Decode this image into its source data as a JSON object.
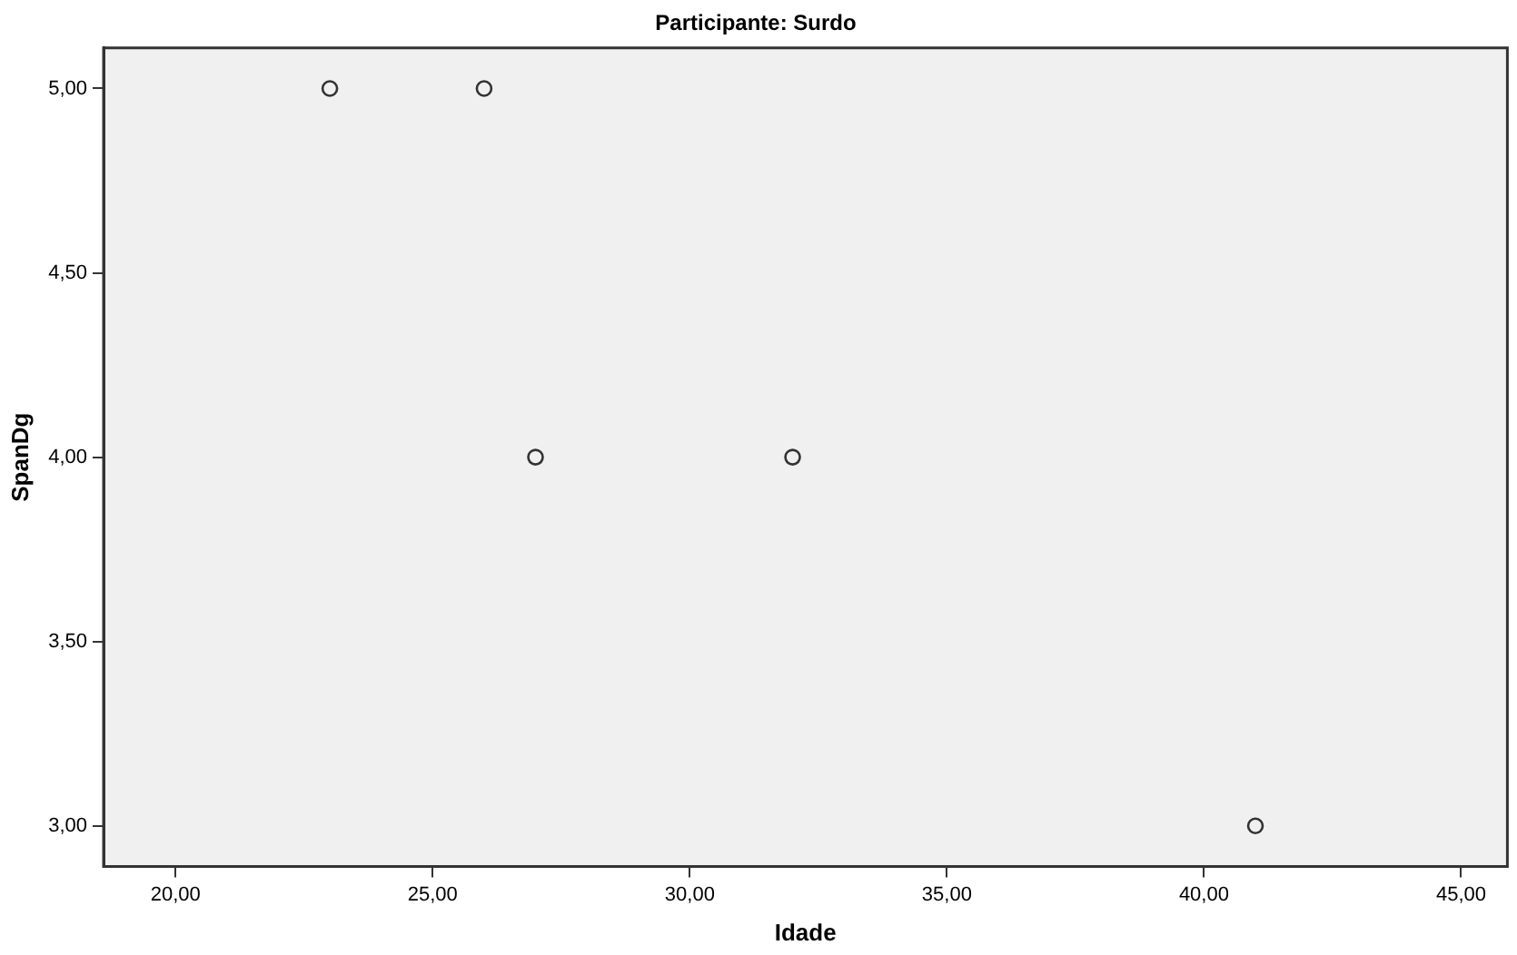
{
  "chart_data": {
    "type": "scatter",
    "title": "Participante: Surdo",
    "xlabel": "Idade",
    "ylabel": "SpanDg",
    "x": [
      23,
      26,
      27,
      32,
      41
    ],
    "values": [
      5,
      5,
      4,
      4,
      3
    ],
    "color": "#333333",
    "marker": "circle",
    "grid": false,
    "legend": false,
    "xlim": [
      18.6,
      45.9
    ],
    "xticks": [
      {
        "value": 20,
        "label": "20,00"
      },
      {
        "value": 25,
        "label": "25,00"
      },
      {
        "value": 30,
        "label": "30,00"
      },
      {
        "value": 35,
        "label": "35,00"
      },
      {
        "value": 40,
        "label": "40,00"
      },
      {
        "value": 45,
        "label": "45,00"
      }
    ],
    "ylim": [
      2.89,
      5.11
    ],
    "yticks": [
      {
        "value": 3,
        "label": "3,00"
      },
      {
        "value": 3.5,
        "label": "3,50"
      },
      {
        "value": 4,
        "label": "4,00"
      },
      {
        "value": 4.5,
        "label": "4,50"
      },
      {
        "value": 5,
        "label": "5,00"
      }
    ]
  }
}
